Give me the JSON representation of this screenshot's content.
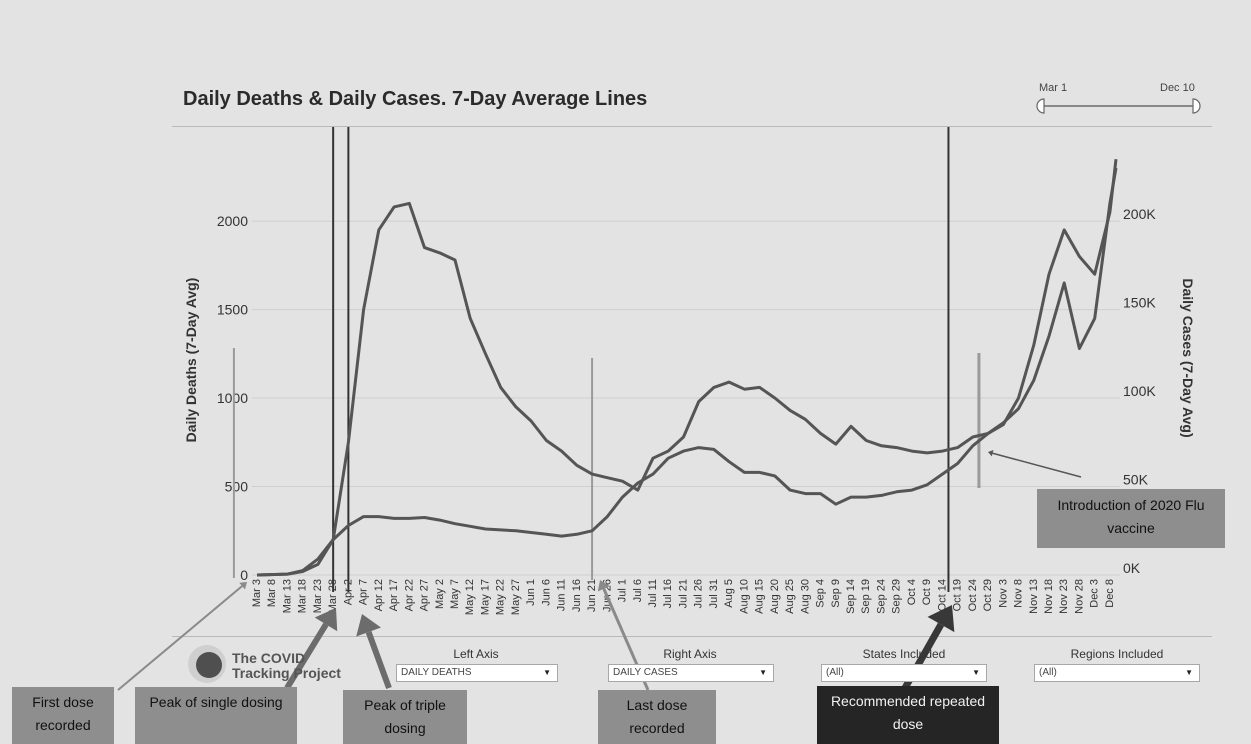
{
  "title": "Daily Deaths & Daily Cases. 7-Day Average Lines",
  "date_slider": {
    "start": "Mar 1",
    "end": "Dec 10"
  },
  "controls": [
    {
      "label": "Left Axis",
      "value": "DAILY DEATHS"
    },
    {
      "label": "Right Axis",
      "value": "DAILY CASES"
    },
    {
      "label": "States Included",
      "value": "(All)"
    },
    {
      "label": "Regions Included",
      "value": "(All)"
    }
  ],
  "logo": {
    "line1": "The COVID",
    "line2": "Tracking Project"
  },
  "colors": {
    "background": "#e3e3e3",
    "line": "#555555",
    "annotation_box": "#8e8e8e",
    "annotation_dark": "#252525",
    "marker_line": "#333333"
  },
  "annotations": [
    {
      "text": "First dose recorded",
      "style": "light"
    },
    {
      "text": "Peak of single dosing",
      "style": "light"
    },
    {
      "text": "Peak of triple dosing",
      "style": "light"
    },
    {
      "text": "Last dose recorded",
      "style": "light"
    },
    {
      "text": "Recommended repeated dose",
      "style": "dark"
    },
    {
      "text": "Introduction of 2020 Flu vaccine",
      "style": "light"
    }
  ],
  "chart_data": {
    "type": "line",
    "ylabel": "Daily Deaths (7-Day Avg)",
    "y2label": "Daily Cases (7-Day Avg)",
    "ylim": [
      0,
      2300
    ],
    "y2lim": [
      0,
      230000
    ],
    "yticks": [
      0,
      500,
      1000,
      1500,
      2000
    ],
    "yticklabels": [
      "0",
      "500",
      "1000",
      "1500",
      "2000"
    ],
    "y2ticks": [
      0,
      50000,
      100000,
      150000,
      200000
    ],
    "y2ticklabels": [
      "0K",
      "50K",
      "100K",
      "150K",
      "200K"
    ],
    "xlim": [
      "2020-03-03",
      "2020-12-10"
    ],
    "xticks": [
      "2020-03-03",
      "2020-03-08",
      "2020-03-13",
      "2020-03-18",
      "2020-03-23",
      "2020-03-28",
      "2020-04-02",
      "2020-04-07",
      "2020-04-12",
      "2020-04-17",
      "2020-04-22",
      "2020-04-27",
      "2020-05-02",
      "2020-05-07",
      "2020-05-12",
      "2020-05-17",
      "2020-05-22",
      "2020-05-27",
      "2020-06-01",
      "2020-06-06",
      "2020-06-11",
      "2020-06-16",
      "2020-06-21",
      "2020-06-26",
      "2020-07-01",
      "2020-07-06",
      "2020-07-11",
      "2020-07-16",
      "2020-07-21",
      "2020-07-26",
      "2020-07-31",
      "2020-08-05",
      "2020-08-10",
      "2020-08-15",
      "2020-08-20",
      "2020-08-25",
      "2020-08-30",
      "2020-09-04",
      "2020-09-09",
      "2020-09-14",
      "2020-09-19",
      "2020-09-24",
      "2020-09-29",
      "2020-10-04",
      "2020-10-09",
      "2020-10-14",
      "2020-10-19",
      "2020-10-24",
      "2020-10-29",
      "2020-11-03",
      "2020-11-08",
      "2020-11-13",
      "2020-11-18",
      "2020-11-23",
      "2020-11-28",
      "2020-12-03",
      "2020-12-08"
    ],
    "xticklabels": [
      "Mar 3",
      "Mar 8",
      "Mar 13",
      "Mar 18",
      "Mar 23",
      "Mar 28",
      "Apr 2",
      "Apr 7",
      "Apr 12",
      "Apr 17",
      "Apr 22",
      "Apr 27",
      "May 2",
      "May 7",
      "May 12",
      "May 17",
      "May 22",
      "May 27",
      "Jun 1",
      "Jun 6",
      "Jun 11",
      "Jun 16",
      "Jun 21",
      "Jun 26",
      "Jul 1",
      "Jul 6",
      "Jul 11",
      "Jul 16",
      "Jul 21",
      "Jul 26",
      "Jul 31",
      "Aug 5",
      "Aug 10",
      "Aug 15",
      "Aug 20",
      "Aug 25",
      "Aug 30",
      "Sep 4",
      "Sep 9",
      "Sep 14",
      "Sep 19",
      "Sep 24",
      "Sep 29",
      "Oct 4",
      "Oct 9",
      "Oct 14",
      "Oct 19",
      "Oct 24",
      "Oct 29",
      "Nov 3",
      "Nov 8",
      "Nov 13",
      "Nov 18",
      "Nov 23",
      "Nov 28",
      "Dec 3",
      "Dec 8"
    ],
    "grid": true,
    "series": [
      {
        "axis": "left",
        "x": [
          "2020-03-03",
          "2020-03-13",
          "2020-03-18",
          "2020-03-23",
          "2020-03-28",
          "2020-04-02",
          "2020-04-07",
          "2020-04-12",
          "2020-04-17",
          "2020-04-22",
          "2020-04-27",
          "2020-05-02",
          "2020-05-07",
          "2020-05-12",
          "2020-05-17",
          "2020-05-22",
          "2020-05-27",
          "2020-06-01",
          "2020-06-06",
          "2020-06-11",
          "2020-06-16",
          "2020-06-21",
          "2020-06-26",
          "2020-07-01",
          "2020-07-06",
          "2020-07-11",
          "2020-07-16",
          "2020-07-21",
          "2020-07-26",
          "2020-07-31",
          "2020-08-05",
          "2020-08-10",
          "2020-08-15",
          "2020-08-20",
          "2020-08-25",
          "2020-08-30",
          "2020-09-04",
          "2020-09-09",
          "2020-09-14",
          "2020-09-19",
          "2020-09-24",
          "2020-09-29",
          "2020-10-04",
          "2020-10-09",
          "2020-10-14",
          "2020-10-19",
          "2020-10-24",
          "2020-10-29",
          "2020-11-03",
          "2020-11-08",
          "2020-11-13",
          "2020-11-18",
          "2020-11-23",
          "2020-11-28",
          "2020-12-03",
          "2020-12-08",
          "2020-12-10"
        ],
        "values": [
          0,
          5,
          20,
          60,
          200,
          750,
          1500,
          1950,
          2080,
          2100,
          1850,
          1820,
          1780,
          1450,
          1250,
          1060,
          950,
          870,
          760,
          700,
          620,
          570,
          550,
          530,
          480,
          660,
          700,
          780,
          980,
          1060,
          1090,
          1050,
          1060,
          1000,
          930,
          880,
          800,
          740,
          840,
          760,
          730,
          720,
          700,
          690,
          700,
          720,
          780,
          800,
          850,
          1000,
          1300,
          1700,
          1950,
          1800,
          1700,
          2050,
          2350
        ]
      },
      {
        "axis": "right",
        "x": [
          "2020-03-03",
          "2020-03-13",
          "2020-03-18",
          "2020-03-23",
          "2020-03-28",
          "2020-04-02",
          "2020-04-07",
          "2020-04-12",
          "2020-04-17",
          "2020-04-22",
          "2020-04-27",
          "2020-05-02",
          "2020-05-07",
          "2020-05-12",
          "2020-05-17",
          "2020-05-22",
          "2020-05-27",
          "2020-06-01",
          "2020-06-06",
          "2020-06-11",
          "2020-06-16",
          "2020-06-21",
          "2020-06-26",
          "2020-07-01",
          "2020-07-06",
          "2020-07-11",
          "2020-07-16",
          "2020-07-21",
          "2020-07-26",
          "2020-07-31",
          "2020-08-05",
          "2020-08-10",
          "2020-08-15",
          "2020-08-20",
          "2020-08-25",
          "2020-08-30",
          "2020-09-04",
          "2020-09-09",
          "2020-09-14",
          "2020-09-19",
          "2020-09-24",
          "2020-09-29",
          "2020-10-04",
          "2020-10-09",
          "2020-10-14",
          "2020-10-19",
          "2020-10-24",
          "2020-10-29",
          "2020-11-03",
          "2020-11-08",
          "2020-11-13",
          "2020-11-18",
          "2020-11-23",
          "2020-11-28",
          "2020-12-03",
          "2020-12-08",
          "2020-12-10"
        ],
        "values": [
          0,
          500,
          2500,
          9000,
          20000,
          28000,
          33000,
          33000,
          32000,
          32000,
          32500,
          31000,
          29000,
          27500,
          26000,
          25500,
          25000,
          24000,
          23000,
          22000,
          23000,
          25000,
          33000,
          44000,
          52000,
          57000,
          66000,
          70000,
          72000,
          71000,
          64000,
          58000,
          58000,
          56000,
          48000,
          46000,
          46000,
          40000,
          44000,
          44000,
          45000,
          47000,
          48000,
          51000,
          57000,
          63000,
          73000,
          80000,
          86000,
          94000,
          110000,
          135000,
          165000,
          128000,
          145000,
          210000,
          230000
        ]
      }
    ],
    "marker_lines": [
      "2020-03-28",
      "2020-04-02",
      "2020-10-16"
    ],
    "annotation_lines": [
      "2020-03-01",
      "2020-06-21",
      "2020-10-26"
    ]
  }
}
